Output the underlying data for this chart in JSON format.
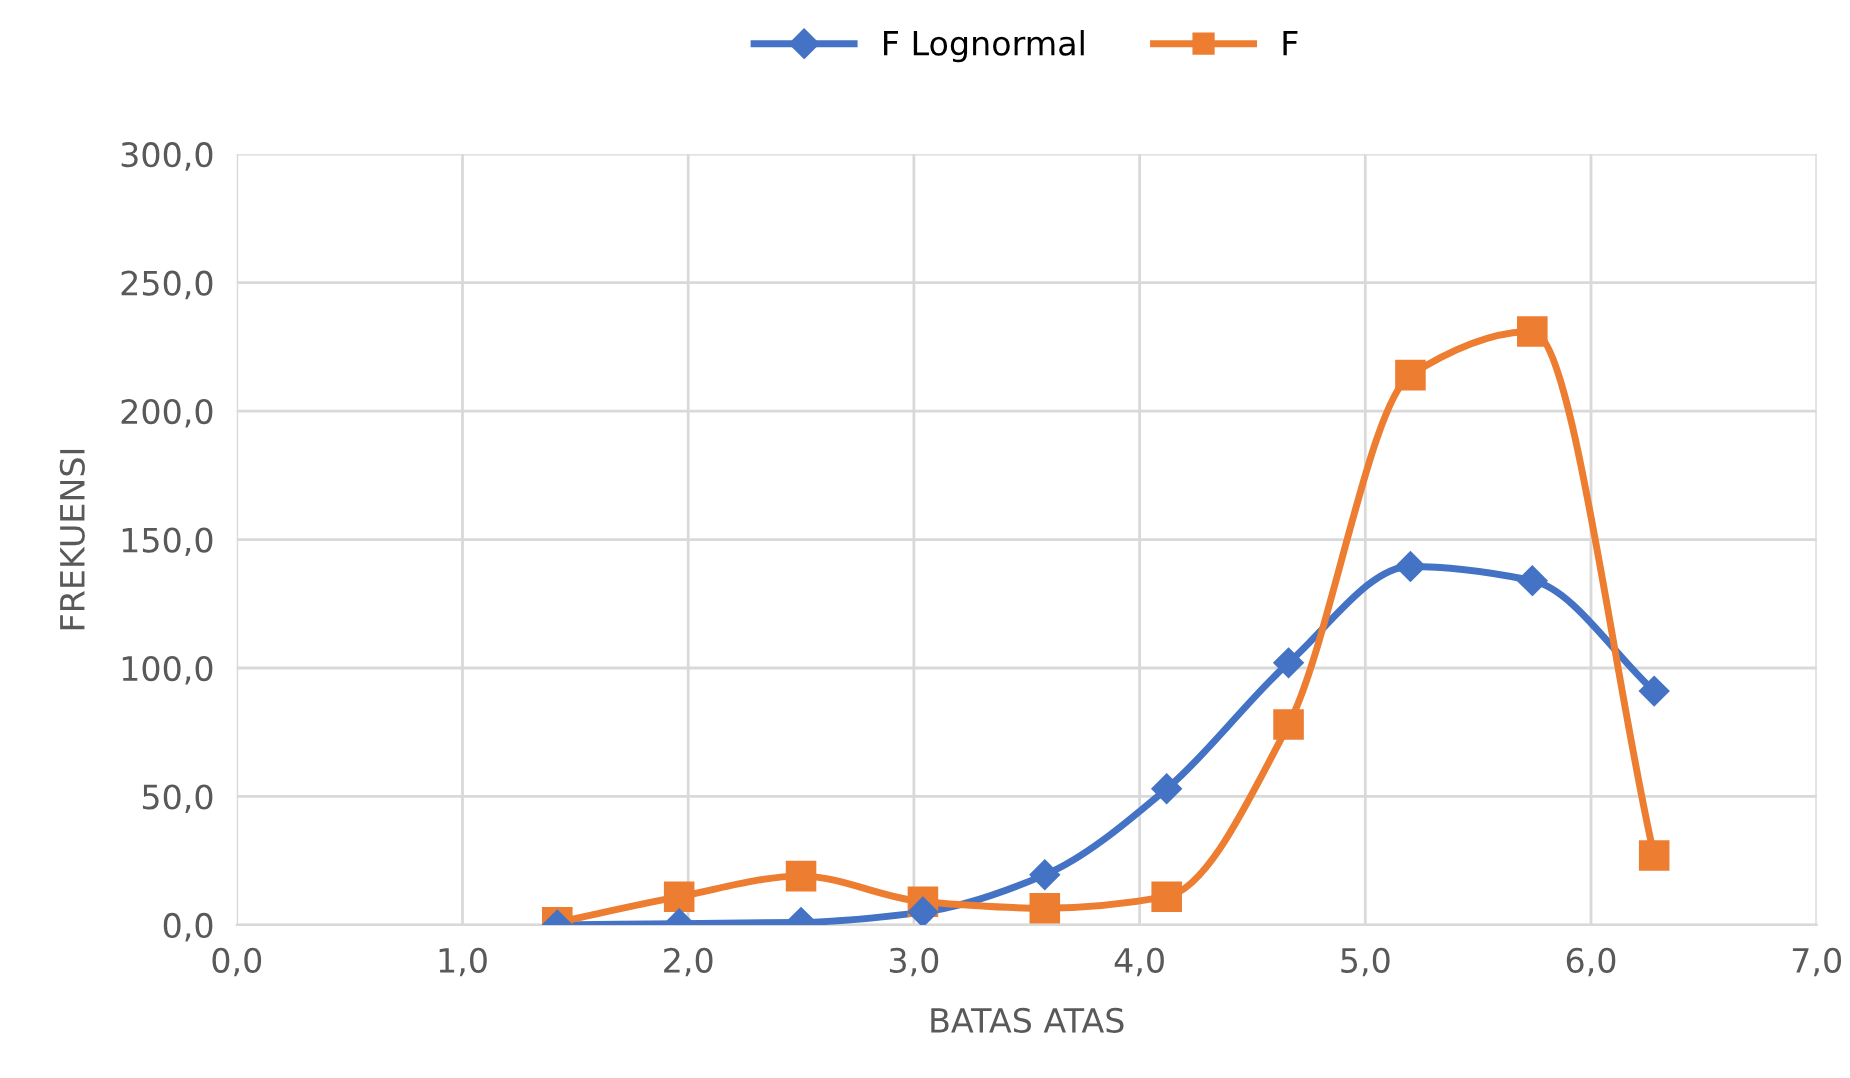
{
  "chart_data": {
    "type": "line",
    "xlabel": "BATAS ATAS",
    "ylabel": "FREKUENSI",
    "x": [
      1.42,
      1.96,
      2.5,
      3.04,
      3.58,
      4.12,
      4.66,
      5.2,
      5.74,
      6.28
    ],
    "series": [
      {
        "name": "F Lognormal",
        "color": "#4472c4",
        "marker": "diamond",
        "values": [
          0,
          0.5,
          1,
          5,
          19.5,
          53,
          102,
          139.5,
          134,
          91
        ]
      },
      {
        "name": "F",
        "color": "#ed7d31",
        "marker": "square",
        "values": [
          1,
          11,
          19,
          9,
          6.5,
          11,
          78,
          214,
          231,
          27
        ]
      }
    ],
    "xlim": [
      0,
      7
    ],
    "ylim": [
      0,
      300
    ],
    "xticks": [
      {
        "value": 0,
        "label": "0,0"
      },
      {
        "value": 1,
        "label": "1,0"
      },
      {
        "value": 2,
        "label": "2,0"
      },
      {
        "value": 3,
        "label": "3,0"
      },
      {
        "value": 4,
        "label": "4,0"
      },
      {
        "value": 5,
        "label": "5,0"
      },
      {
        "value": 6,
        "label": "6,0"
      },
      {
        "value": 7,
        "label": "7,0"
      }
    ],
    "yticks": [
      {
        "value": 0,
        "label": "0,0"
      },
      {
        "value": 50,
        "label": "50,0"
      },
      {
        "value": 100,
        "label": "100,0"
      },
      {
        "value": 150,
        "label": "150,0"
      },
      {
        "value": 200,
        "label": "200,0"
      },
      {
        "value": 250,
        "label": "250,0"
      },
      {
        "value": 300,
        "label": "300,0"
      }
    ],
    "grid": true,
    "legend": "top",
    "line_style": "solid"
  }
}
